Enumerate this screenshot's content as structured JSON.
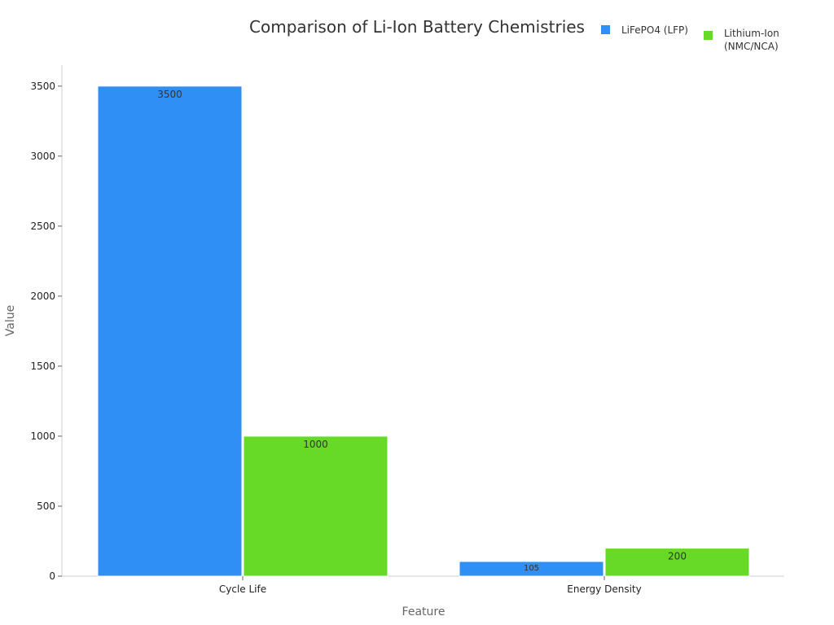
{
  "chart_data": {
    "type": "bar",
    "title": "Comparison of Li-Ion Battery Chemistries",
    "xlabel": "Feature",
    "ylabel": "Value",
    "categories": [
      "Cycle Life",
      "Energy Density"
    ],
    "series": [
      {
        "name": "LiFePO4 (LFP)",
        "color": "#2f8ff5",
        "values": [
          3500,
          105
        ],
        "value_labels": [
          "3500",
          "105"
        ]
      },
      {
        "name": "Lithium-Ion (NMC/NCA)",
        "color": "#66da26",
        "values": [
          1000,
          200
        ],
        "value_labels": [
          "1000",
          "200"
        ]
      }
    ],
    "yticks": [
      0,
      500,
      1000,
      1500,
      2000,
      2500,
      3000,
      3500
    ],
    "ylim": [
      0,
      3650
    ],
    "legend": {
      "placement": "top-right",
      "items": [
        {
          "label_lines": [
            "LiFePO4 (LFP)"
          ]
        },
        {
          "label_lines": [
            "Lithium-Ion",
            "(NMC/NCA)"
          ]
        }
      ]
    },
    "grid": false
  }
}
